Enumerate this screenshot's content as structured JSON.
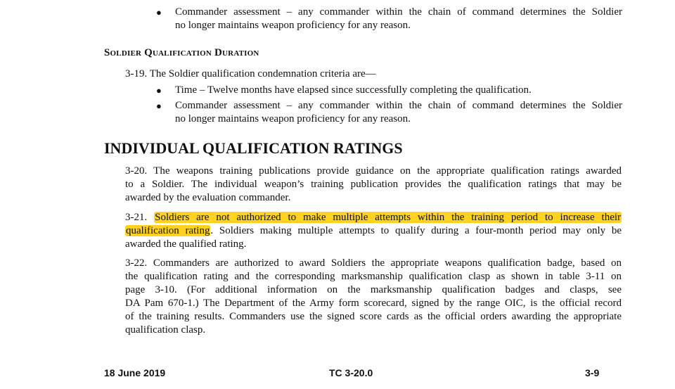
{
  "top_bullet": {
    "lines": [
      "Commander assessment – any commander within the chain of command determines the Soldier",
      "no longer maintains weapon proficiency for any reason."
    ]
  },
  "duration": {
    "heading": "Soldier Qualification Duration",
    "intro": "3-19. The Soldier qualification condemnation criteria are—",
    "bullets": [
      {
        "lines": [
          "Time – Twelve months have elapsed since successfully completing the qualification."
        ]
      },
      {
        "lines": [
          "Commander assessment – any commander within the chain of command determines the Soldier",
          "no longer maintains weapon proficiency for any reason."
        ]
      }
    ]
  },
  "ratings": {
    "heading": "INDIVIDUAL QUALIFICATION RATINGS",
    "p320": [
      "3-20. The weapons training publications provide guidance on the appropriate qualification ratings awarded",
      "to a Soldier. The individual weapon’s training publication provides the qualification ratings that may be",
      "awarded by the evaluation commander."
    ],
    "p321": {
      "num": "3-21.",
      "highlight_1": "Soldiers are not authorized to make multiple attempts within the training period to increase their",
      "highlight_2": "qualification rating",
      "rest_2": ". Soldiers making multiple attempts to qualify during a four-month period may only be",
      "line3": "awarded the qualified rating.",
      "highlight_color": "#ffd21f"
    },
    "p322": [
      "3-22. Commanders are authorized to award Soldiers the appropriate weapons qualification badge, based on",
      "the qualification rating and the corresponding marksmanship qualification clasp as shown in table 3-11 on",
      "page 3-10. (For additional information on the marksmanship qualification badges and clasps, see",
      "DA Pam 670-1.) The Department of the Army form scorecard, signed by the range OIC, is the official record",
      "of the training results. Commanders use the signed score cards as the official orders awarding the appropriate",
      "qualification clasp."
    ]
  },
  "footer": {
    "date": "18 June 2019",
    "doc": "TC 3-20.0",
    "page": "3-9"
  }
}
